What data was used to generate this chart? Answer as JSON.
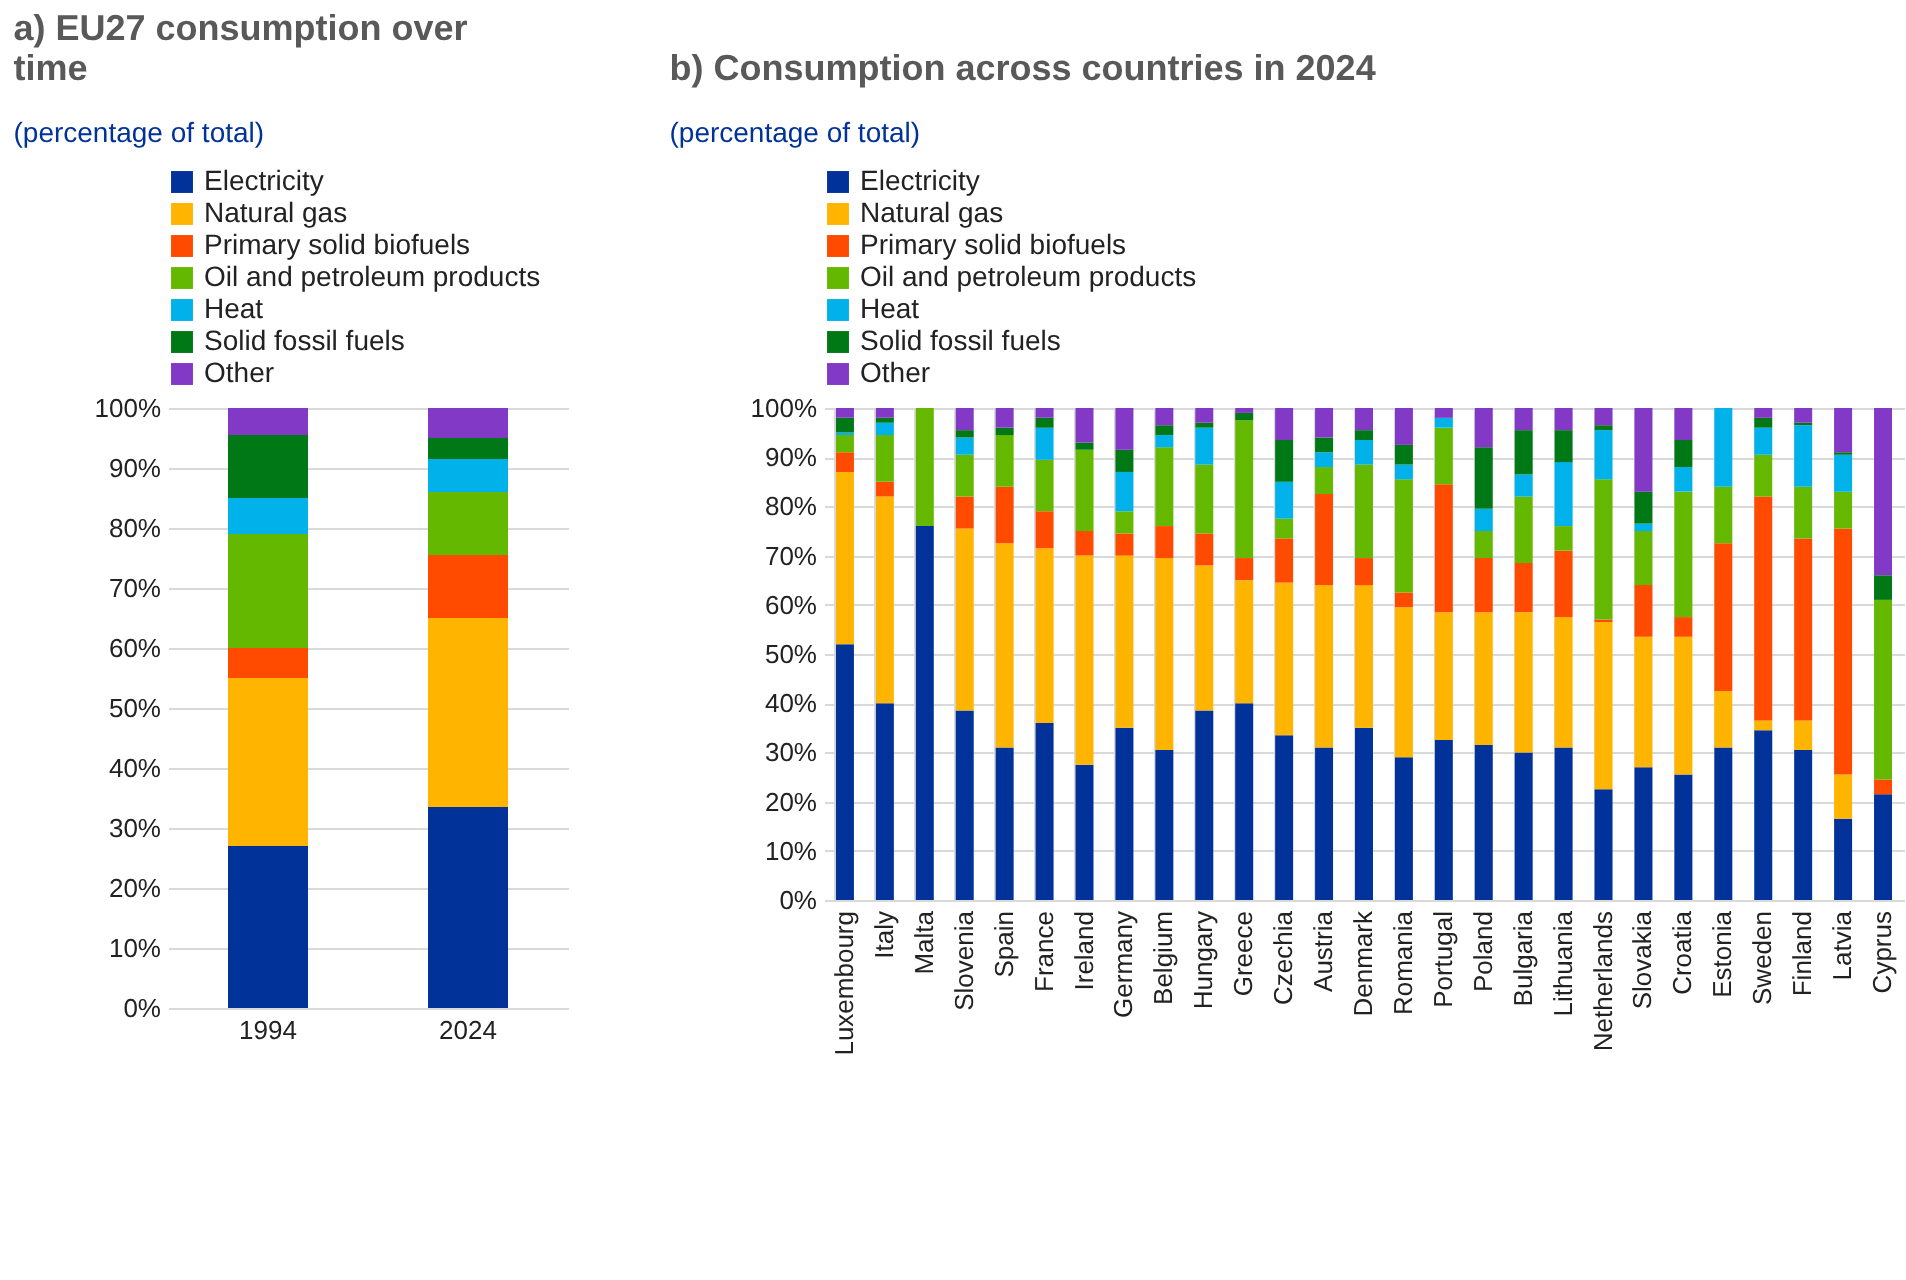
{
  "chart_data": [
    {
      "type": "bar",
      "title": "a) EU27 consumption over time",
      "subtitle": "(percentage of total)",
      "stacked": true,
      "categories": [
        "1994",
        "2024"
      ],
      "series": [
        {
          "name": "Electricity",
          "color": "#003299",
          "values": [
            27,
            33.5
          ]
        },
        {
          "name": "Natural gas",
          "color": "#ffb400",
          "values": [
            28,
            31.5
          ]
        },
        {
          "name": "Primary solid biofuels",
          "color": "#ff4b00",
          "values": [
            5,
            10.5
          ]
        },
        {
          "name": "Oil and petroleum products",
          "color": "#65b800",
          "values": [
            19,
            10.5
          ]
        },
        {
          "name": "Heat",
          "color": "#00b1ea",
          "values": [
            6,
            5.5
          ]
        },
        {
          "name": "Solid fossil fuels",
          "color": "#007816",
          "values": [
            10.5,
            3.5
          ]
        },
        {
          "name": "Other",
          "color": "#8139c6",
          "values": [
            4.5,
            5
          ]
        }
      ],
      "ylim": [
        0,
        100
      ],
      "yticks": [
        {
          "value": 0,
          "label": "0%"
        },
        {
          "value": 10,
          "label": "10%"
        },
        {
          "value": 20,
          "label": "20%"
        },
        {
          "value": 30,
          "label": "30%"
        },
        {
          "value": 40,
          "label": "40%"
        },
        {
          "value": 50,
          "label": "50%"
        },
        {
          "value": 60,
          "label": "60%"
        },
        {
          "value": 70,
          "label": "70%"
        },
        {
          "value": 80,
          "label": "80%"
        },
        {
          "value": 90,
          "label": "90%"
        },
        {
          "value": 100,
          "label": "100%"
        }
      ],
      "grid": true,
      "legend": "top"
    },
    {
      "type": "bar",
      "title": "b) Consumption across countries in 2024",
      "subtitle": "(percentage of total)",
      "stacked": true,
      "categories": [
        "Luxembourg",
        "Italy",
        "Malta",
        "Slovenia",
        "Spain",
        "France",
        "Ireland",
        "Germany",
        "Belgium",
        "Hungary",
        "Greece",
        "Czechia",
        "Austria",
        "Denmark",
        "Romania",
        "Portugal",
        "Poland",
        "Bulgaria",
        "Lithuania",
        "Netherlands",
        "Slovakia",
        "Croatia",
        "Estonia",
        "Sweden",
        "Finland",
        "Latvia",
        "Cyprus"
      ],
      "series": [
        {
          "name": "Electricity",
          "color": "#003299",
          "values": [
            52,
            40,
            76,
            38.5,
            31,
            36,
            27.5,
            35,
            30.5,
            38.5,
            40,
            33.5,
            31,
            35,
            29,
            32.5,
            31.5,
            30,
            31,
            22.5,
            27,
            25.5,
            31,
            34.5,
            30.5,
            16.5,
            21.5
          ]
        },
        {
          "name": "Natural gas",
          "color": "#ffb400",
          "values": [
            35,
            42,
            0,
            37,
            41.5,
            35.5,
            42.5,
            35,
            39,
            29.5,
            25,
            31,
            33,
            29,
            30.5,
            26,
            27,
            28.5,
            26.5,
            34,
            26.5,
            28,
            11.5,
            2,
            6,
            9,
            0
          ]
        },
        {
          "name": "Primary solid biofuels",
          "color": "#ff4b00",
          "values": [
            4,
            3,
            0,
            6.5,
            11.5,
            7.5,
            5,
            4.5,
            6.5,
            6.5,
            4.5,
            9,
            18.5,
            5.5,
            3,
            26,
            11,
            10,
            13.5,
            0.5,
            10.5,
            4,
            30,
            45.5,
            37,
            50,
            3
          ]
        },
        {
          "name": "Oil and petroleum products",
          "color": "#65b800",
          "values": [
            3.5,
            9.5,
            24,
            8.5,
            10.5,
            10.5,
            16.5,
            4.5,
            16,
            14,
            28,
            4,
            5.5,
            19,
            23,
            11.5,
            5.5,
            13.5,
            5,
            28.5,
            11,
            25.5,
            11.5,
            8.5,
            10.5,
            7.5,
            36.5
          ]
        },
        {
          "name": "Heat",
          "color": "#00b1ea",
          "values": [
            0.5,
            2.5,
            0,
            3.5,
            0,
            6.5,
            0,
            8,
            2.5,
            7.5,
            0,
            7.5,
            3,
            5,
            3,
            2,
            4.5,
            4.5,
            13,
            10,
            1.5,
            5,
            16,
            5.5,
            12.5,
            7.5,
            0
          ]
        },
        {
          "name": "Solid fossil fuels",
          "color": "#007816",
          "values": [
            3,
            1,
            0,
            1.5,
            1.5,
            2,
            1.5,
            4.5,
            2,
            1,
            1.5,
            8.5,
            3,
            2,
            4,
            0,
            12.5,
            9,
            6.5,
            1,
            6.5,
            5.5,
            0,
            2,
            0.5,
            0.5,
            5
          ]
        },
        {
          "name": "Other",
          "color": "#8139c6",
          "values": [
            2,
            2,
            0,
            4.5,
            4,
            2,
            7,
            8.5,
            3.5,
            3,
            1,
            6.5,
            6,
            4.5,
            7.5,
            2,
            8,
            4.5,
            4.5,
            3.5,
            17,
            6.5,
            0,
            2,
            3,
            9,
            34
          ]
        }
      ],
      "ylim": [
        0,
        100
      ],
      "yticks": [
        {
          "value": 0,
          "label": "0%"
        },
        {
          "value": 10,
          "label": "10%"
        },
        {
          "value": 20,
          "label": "20%"
        },
        {
          "value": 30,
          "label": "30%"
        },
        {
          "value": 40,
          "label": "40%"
        },
        {
          "value": 50,
          "label": "50%"
        },
        {
          "value": 60,
          "label": "60%"
        },
        {
          "value": 70,
          "label": "70%"
        },
        {
          "value": 80,
          "label": "80%"
        },
        {
          "value": 90,
          "label": "90%"
        },
        {
          "value": 100,
          "label": "100%"
        }
      ],
      "grid": true,
      "legend": "top"
    }
  ]
}
